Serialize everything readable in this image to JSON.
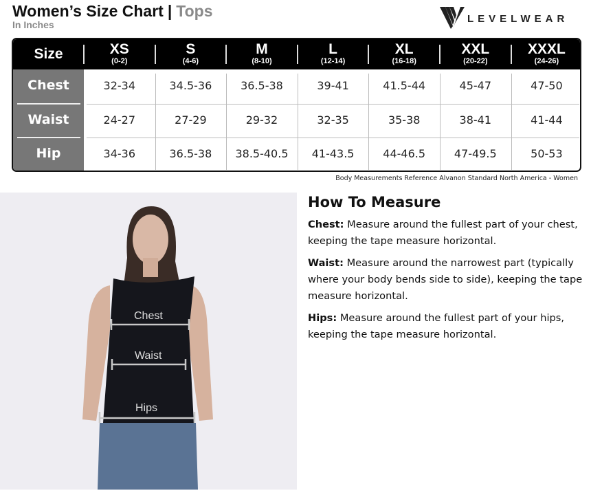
{
  "header": {
    "title": "Women’s Size Chart",
    "separator": "|",
    "category": "Tops",
    "unit": "In Inches",
    "logo_text": "LEVELWEAR"
  },
  "table": {
    "corner_label": "Size",
    "sizes": [
      {
        "label": "XS",
        "range": "(0-2)"
      },
      {
        "label": "S",
        "range": "(4-6)"
      },
      {
        "label": "M",
        "range": "(8-10)"
      },
      {
        "label": "L",
        "range": "(12-14)"
      },
      {
        "label": "XL",
        "range": "(16-18)"
      },
      {
        "label": "XXL",
        "range": "(20-22)"
      },
      {
        "label": "XXXL",
        "range": "(24-26)"
      }
    ],
    "rows": [
      {
        "label": "Chest",
        "values": [
          "32-34",
          "34.5-36",
          "36.5-38",
          "39-41",
          "41.5-44",
          "45-47",
          "47-50"
        ]
      },
      {
        "label": "Waist",
        "values": [
          "24-27",
          "27-29",
          "29-32",
          "32-35",
          "35-38",
          "38-41",
          "41-44"
        ]
      },
      {
        "label": "Hip",
        "values": [
          "34-36",
          "36.5-38",
          "38.5-40.5",
          "41-43.5",
          "44-46.5",
          "47-49.5",
          "50-53"
        ]
      }
    ]
  },
  "footnote": "Body Measurements Reference Alvanon Standard North America - Women",
  "photo": {
    "labels": {
      "chest": "Chest",
      "waist": "Waist",
      "hips": "Hips"
    }
  },
  "how_to": {
    "title": "How To Measure",
    "items": [
      {
        "term": "Chest:",
        "text": " Measure around the fullest part of your chest, keeping the tape measure horizontal."
      },
      {
        "term": "Waist:",
        "text": " Measure around the narrowest part (typically where your body bends side to side), keeping the tape measure horizontal."
      },
      {
        "term": "Hips:",
        "text": " Measure around the fullest part of your hips, keeping the tape measure horizontal."
      }
    ]
  },
  "colors": {
    "header_bg": "#000000",
    "label_col_bg": "#777777",
    "subtitle_gray": "#8a8a8a",
    "photo_bg": "#eeedf2"
  }
}
